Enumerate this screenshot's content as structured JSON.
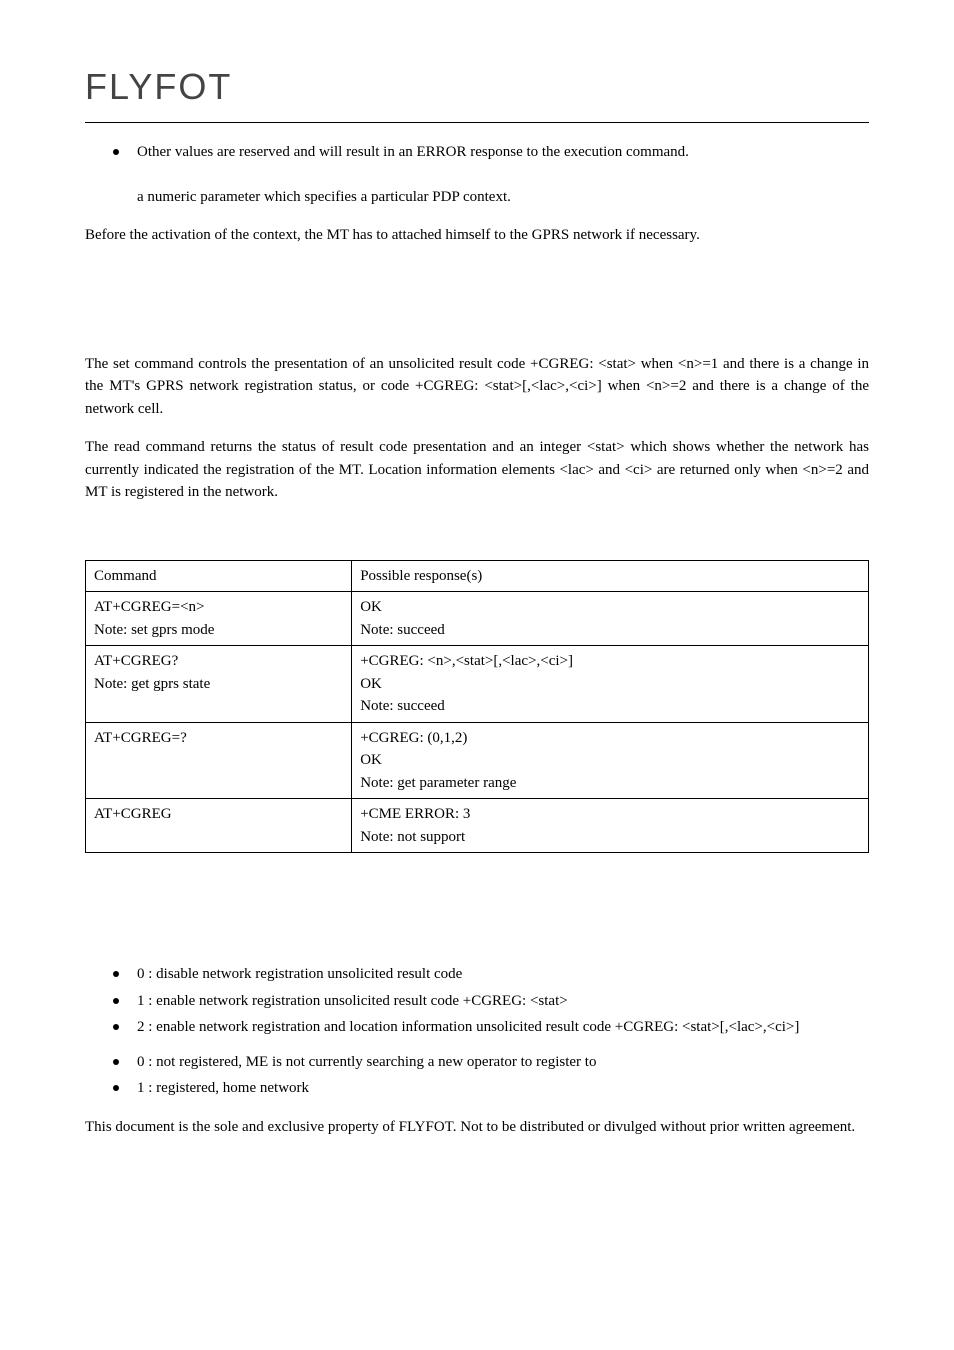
{
  "logo": "FLYFOT",
  "intro_bullet": "Other values are reserved and will result in an ERROR response to the execution command.",
  "intro_para": "a numeric parameter which specifies a particular PDP context.",
  "before_activation": "Before the activation of the context, the MT has to attached himself to the GPRS network if necessary.",
  "set_command_para": "The set command controls the presentation of an unsolicited result code +CGREG: <stat> when <n>=1 and there is a change in the MT's GPRS network registration status, or code +CGREG: <stat>[,<lac>,<ci>] when <n>=2 and there is a change of the network cell.",
  "read_command_para": "The read command returns the status of result code presentation and an integer <stat> which shows whether the network has currently indicated the registration of the MT. Location information elements <lac> and <ci> are returned only when <n>=2 and MT is registered in the network.",
  "table": {
    "header": {
      "command": "Command",
      "response": "Possible response(s)"
    },
    "rows": [
      {
        "cmd": [
          "AT+CGREG=<n>",
          "Note: set gprs mode"
        ],
        "resp": [
          "OK",
          "Note: succeed"
        ]
      },
      {
        "cmd": [
          "AT+CGREG?",
          "",
          "Note: get gprs state"
        ],
        "resp": [
          "+CGREG: <n>,<stat>[,<lac>,<ci>]",
          "OK",
          "Note: succeed"
        ]
      },
      {
        "cmd": [
          "AT+CGREG=?"
        ],
        "resp": [
          "+CGREG: (0,1,2)",
          "OK",
          "Note: get parameter range"
        ]
      },
      {
        "cmd": [
          "AT+CGREG"
        ],
        "resp": [
          "+CME ERROR: 3",
          "Note: not support"
        ]
      }
    ]
  },
  "list1": [
    "0 : disable network registration unsolicited result code",
    "1 : enable network registration unsolicited result code +CGREG: <stat>",
    "2 : enable network registration and location information unsolicited result code +CGREG: <stat>[,<lac>,<ci>]"
  ],
  "list2": [
    "0 : not registered, ME is not currently searching a new operator to register to",
    "1 : registered, home network"
  ],
  "footer": "This document is the sole and exclusive property of FLYFOT. Not to be distributed or divulged without prior written agreement."
}
